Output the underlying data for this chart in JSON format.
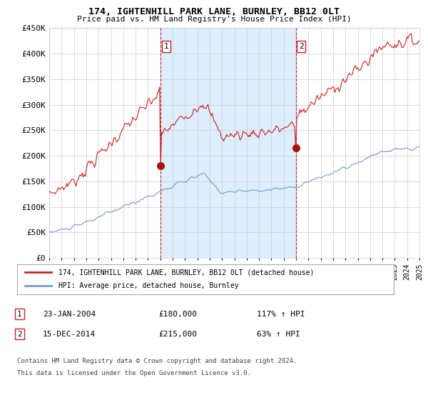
{
  "title": "174, IGHTENHILL PARK LANE, BURNLEY, BB12 0LT",
  "subtitle": "Price paid vs. HM Land Registry's House Price Index (HPI)",
  "ylim": [
    0,
    450000
  ],
  "yticks": [
    0,
    50000,
    100000,
    150000,
    200000,
    250000,
    300000,
    350000,
    400000,
    450000
  ],
  "ytick_labels": [
    "£0",
    "£50K",
    "£100K",
    "£150K",
    "£200K",
    "£250K",
    "£300K",
    "£350K",
    "£400K",
    "£450K"
  ],
  "sale1_date": "23-JAN-2004",
  "sale1_price": 180000,
  "sale1_hpi_pct": "117%",
  "sale2_date": "15-DEC-2014",
  "sale2_price": 215000,
  "sale2_hpi_pct": "63%",
  "legend_label1": "174, IGHTENHILL PARK LANE, BURNLEY, BB12 0LT (detached house)",
  "legend_label2": "HPI: Average price, detached house, Burnley",
  "red_line_color": "#cc2222",
  "blue_line_color": "#7799cc",
  "shading_color": "#ddeeff",
  "marker_color": "#aa1111",
  "grid_color": "#cccccc",
  "bg_color": "#ffffff",
  "footnote1": "Contains HM Land Registry data © Crown copyright and database right 2024.",
  "footnote2": "This data is licensed under the Open Government Licence v3.0.",
  "x_start_year": 1995,
  "x_end_year": 2025,
  "sale1_year": 2004.05,
  "sale2_year": 2014.96
}
